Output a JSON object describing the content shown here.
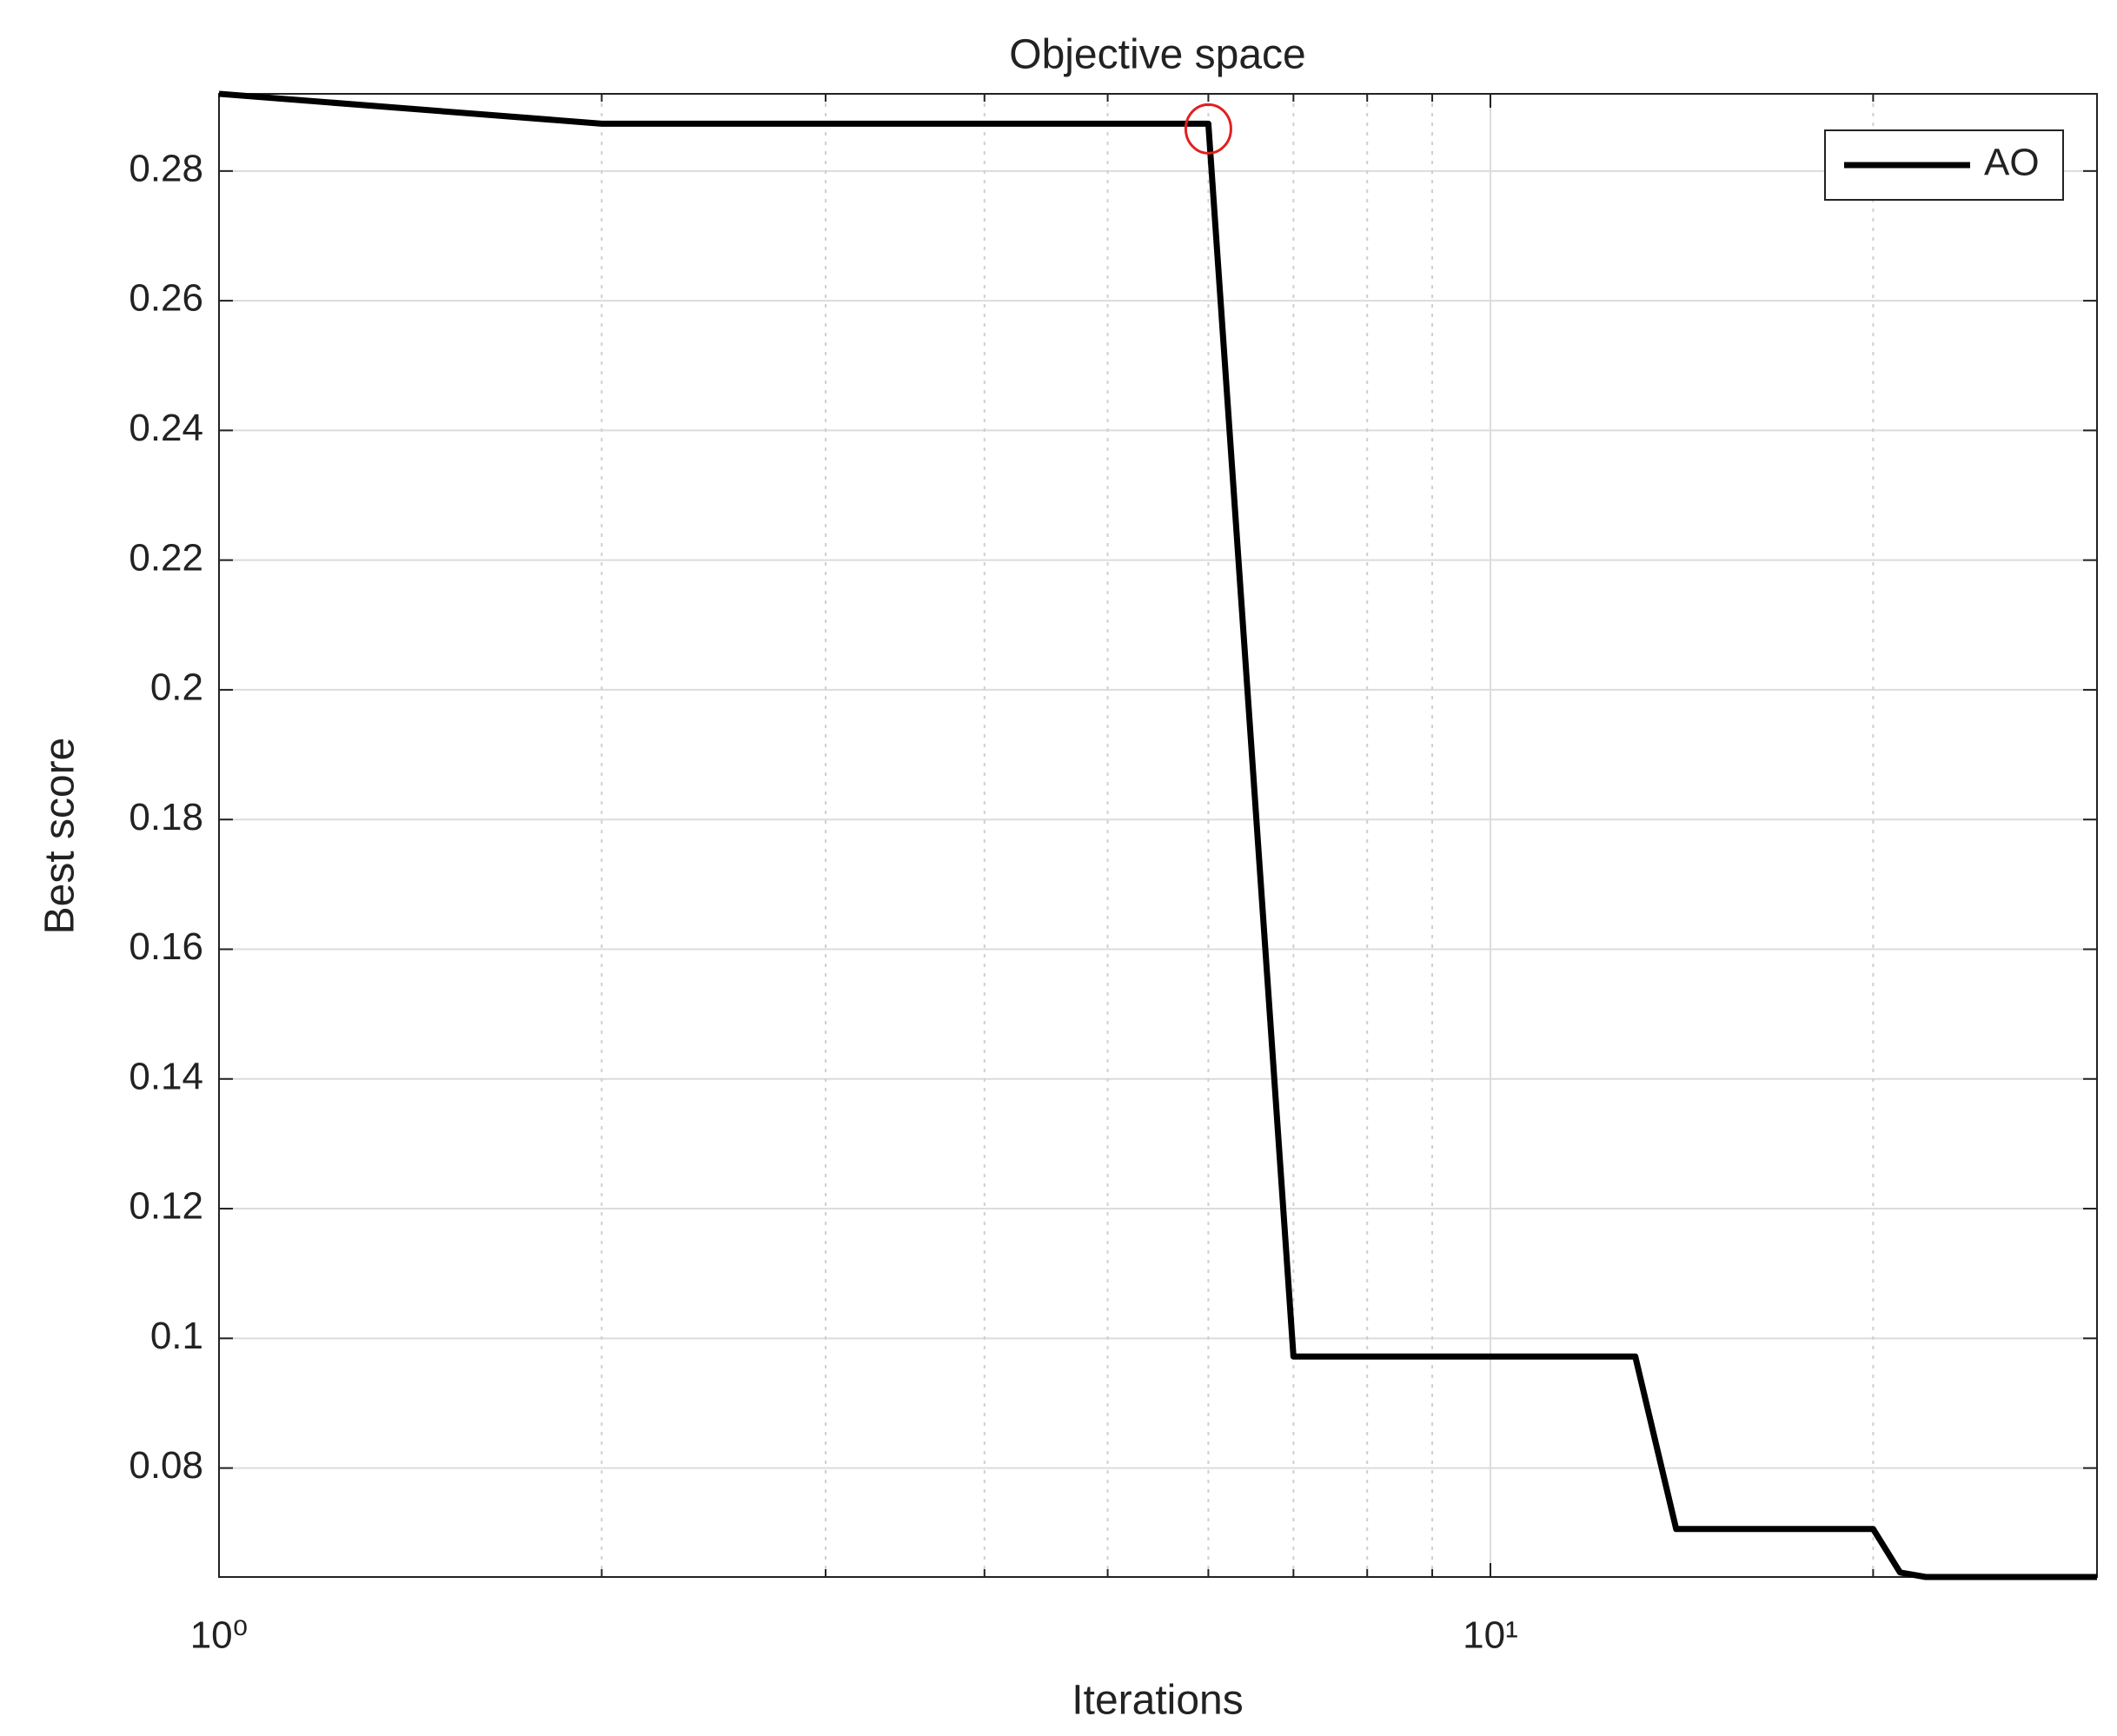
{
  "chart_data": {
    "type": "line",
    "title": "Objective space",
    "xlabel": "Iterations",
    "ylabel": "Best score",
    "xscale": "log",
    "x": [
      1,
      2,
      3,
      4,
      5,
      6,
      7,
      8,
      9,
      10,
      11,
      12,
      13,
      14,
      15,
      16,
      17,
      18,
      19,
      20,
      21,
      22,
      23,
      24,
      25,
      26,
      27,
      28,
      29,
      30
    ],
    "series": [
      {
        "name": "AO",
        "color": "#000000",
        "values": [
          0.2919,
          0.2873,
          0.2873,
          0.2873,
          0.2873,
          0.2873,
          0.0972,
          0.0972,
          0.0972,
          0.0972,
          0.0972,
          0.0972,
          0.0972,
          0.0706,
          0.0706,
          0.0706,
          0.0706,
          0.0706,
          0.0706,
          0.0706,
          0.0639,
          0.0632,
          0.0632,
          0.0632,
          0.0632,
          0.0632,
          0.0632,
          0.0632,
          0.0632,
          0.0632
        ]
      }
    ],
    "marker": {
      "x": 6,
      "y": 0.2873,
      "color": "#e02020"
    },
    "xlim": [
      1,
      30
    ],
    "xticks": [
      {
        "value": 1,
        "label": "10⁰"
      },
      {
        "value": 10,
        "label": "10¹"
      }
    ],
    "xminorticks": [
      2,
      3,
      4,
      5,
      6,
      7,
      8,
      9,
      20
    ],
    "ylim": [
      0.0632,
      0.2919
    ],
    "yticks": [
      0.08,
      0.1,
      0.12,
      0.14,
      0.16,
      0.18,
      0.2,
      0.22,
      0.24,
      0.26,
      0.28
    ],
    "grid": true,
    "legend": "upper right"
  }
}
